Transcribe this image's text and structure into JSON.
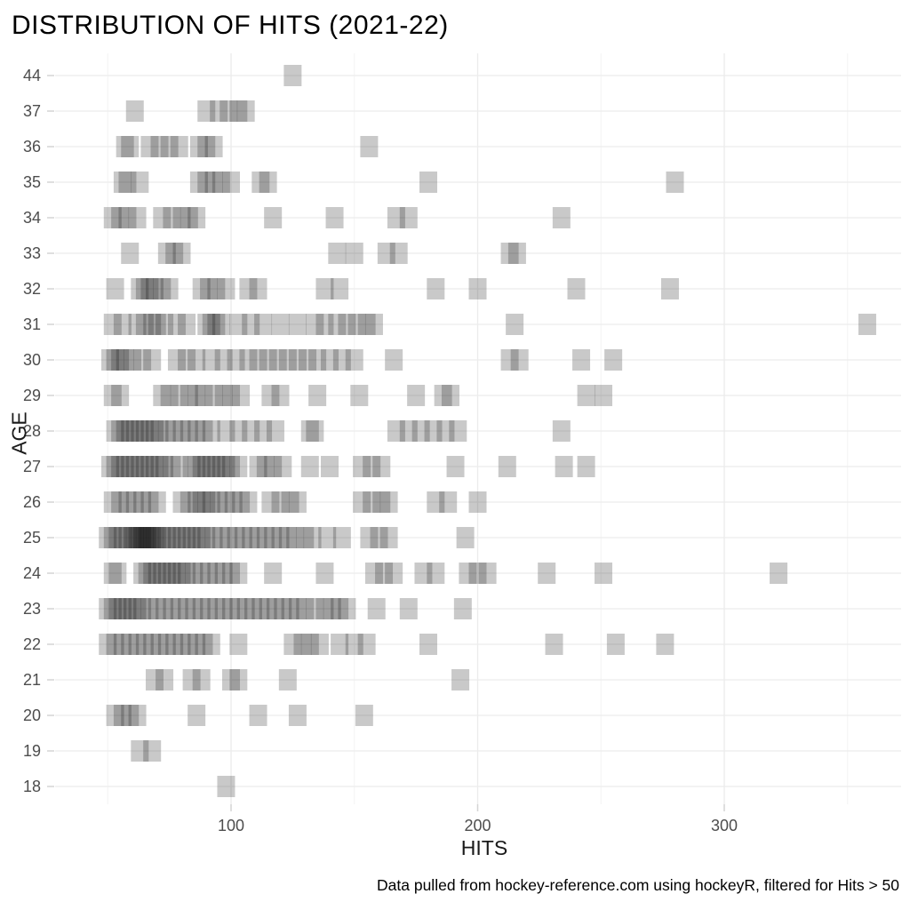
{
  "chart_data": {
    "type": "scatter",
    "subtype": "strip-plot-square-markers",
    "title": "DISTRIBUTION OF HITS (2021-22)",
    "xlabel": "HITS",
    "ylabel": "AGE",
    "caption": "Data pulled from hockey-reference.com using hockeyR, filtered for Hits > 50",
    "x_tick_labels": [
      "100",
      "200",
      "300"
    ],
    "x_ticks": [
      100,
      200,
      300
    ],
    "x_minor_gridlines": [
      50,
      150,
      250,
      350
    ],
    "xlim": [
      29,
      372
    ],
    "grid": "on",
    "legend": "none",
    "marker_color": "#000000",
    "marker_alpha": 0.21,
    "gridline_color": "#ececec",
    "minor_gridline_color": "#f4f4f4",
    "tick_mark_color": "#d4d4d4",
    "tick_label_color": "#4d4d4d",
    "y_categories_top_to_bottom": [
      "44",
      "37",
      "36",
      "35",
      "34",
      "33",
      "32",
      "31",
      "30",
      "29",
      "28",
      "27",
      "26",
      "25",
      "24",
      "23",
      "22",
      "21",
      "20",
      "19",
      "18"
    ],
    "points_by_age": {
      "44": [
        125
      ],
      "37": [
        61,
        90,
        95,
        99,
        103,
        106
      ],
      "36": [
        57,
        59,
        67,
        71,
        75,
        79,
        87,
        90,
        93,
        156
      ],
      "35": [
        56,
        58,
        63,
        87,
        90,
        93,
        96,
        100,
        112,
        115,
        180,
        280
      ],
      "34": [
        52,
        55,
        58,
        62,
        72,
        76,
        80,
        83,
        86,
        117,
        142,
        167,
        172,
        234
      ],
      "33": [
        59,
        74,
        77,
        80,
        143,
        150,
        163,
        168,
        213,
        216
      ],
      "32": [
        53,
        63,
        65,
        67,
        69,
        72,
        75,
        88,
        91,
        94,
        98,
        107,
        111,
        138,
        144,
        183,
        200,
        240,
        278
      ],
      "31": [
        52,
        56,
        62,
        65,
        68,
        70,
        73,
        78,
        82,
        90,
        92,
        94,
        96,
        103,
        108,
        113,
        120,
        127,
        134,
        138,
        143,
        147,
        151,
        155,
        158,
        215,
        358
      ],
      "30": [
        51,
        53,
        55,
        57,
        60,
        64,
        68,
        78,
        82,
        86,
        92,
        97,
        102,
        107,
        111,
        115,
        119,
        123,
        127,
        131,
        135,
        140,
        145,
        150,
        166,
        213,
        217,
        242,
        255
      ],
      "29": [
        52,
        55,
        72,
        75,
        79,
        83,
        86,
        89,
        93,
        97,
        100,
        104,
        116,
        120,
        135,
        152,
        175,
        186,
        189,
        244,
        251
      ],
      "28": [
        53,
        55,
        57,
        59,
        61,
        63,
        65,
        67,
        69,
        71,
        74,
        77,
        80,
        83,
        86,
        89,
        92,
        98,
        103,
        108,
        113,
        118,
        132,
        134,
        167,
        172,
        177,
        182,
        187,
        192,
        234
      ],
      "27": [
        51,
        53,
        55,
        57,
        59,
        61,
        63,
        65,
        67,
        69,
        71,
        73,
        76,
        79,
        84,
        86,
        88,
        90,
        92,
        94,
        96,
        98,
        100,
        103,
        111,
        114,
        117,
        121,
        132,
        140,
        153,
        157,
        161,
        191,
        212,
        235,
        244
      ],
      "26": [
        52,
        55,
        58,
        61,
        64,
        67,
        70,
        80,
        83,
        86,
        88,
        90,
        92,
        95,
        98,
        101,
        104,
        107,
        116,
        120,
        124,
        127,
        153,
        157,
        161,
        164,
        183,
        188,
        200
      ],
      "25": [
        50,
        52,
        54,
        56,
        58,
        60,
        61,
        62,
        63,
        64,
        65,
        66,
        67,
        68,
        69,
        70,
        72,
        74,
        76,
        78,
        80,
        82,
        84,
        86,
        88,
        90,
        93,
        96,
        99,
        102,
        105,
        108,
        111,
        114,
        117,
        120,
        123,
        126,
        130,
        133,
        139,
        145,
        156,
        160,
        164,
        195
      ],
      "24": [
        52,
        54,
        64,
        66,
        68,
        70,
        72,
        74,
        76,
        78,
        80,
        82,
        85,
        88,
        91,
        94,
        97,
        100,
        103,
        117,
        138,
        158,
        162,
        166,
        178,
        183,
        196,
        200,
        204,
        228,
        251,
        322
      ],
      "23": [
        50,
        52,
        54,
        56,
        58,
        60,
        62,
        64,
        67,
        70,
        73,
        76,
        79,
        82,
        85,
        88,
        91,
        94,
        97,
        100,
        103,
        106,
        109,
        112,
        115,
        118,
        121,
        124,
        127,
        130,
        134,
        138,
        141,
        144,
        147,
        159,
        172,
        194
      ],
      "22": [
        50,
        53,
        56,
        59,
        62,
        65,
        68,
        71,
        74,
        77,
        80,
        83,
        86,
        89,
        92,
        103,
        125,
        129,
        132,
        136,
        144,
        150,
        155,
        180,
        231,
        256,
        276
      ],
      "21": [
        69,
        73,
        84,
        88,
        100,
        103,
        123,
        193
      ],
      "20": [
        53,
        56,
        59,
        62,
        86,
        111,
        127,
        154
      ],
      "19": [
        63,
        68
      ],
      "18": [
        98
      ]
    }
  }
}
